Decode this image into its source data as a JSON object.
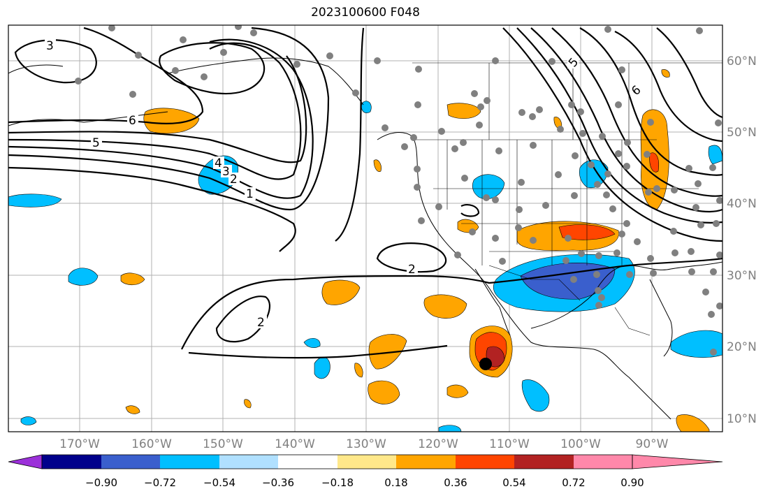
{
  "title": "2023100600 F048",
  "lon_labels": [
    "170°W",
    "160°W",
    "150°W",
    "140°W",
    "130°W",
    "120°W",
    "110°W",
    "100°W",
    "90°W"
  ],
  "lat_labels": [
    "60°N",
    "50°N",
    "40°N",
    "30°N",
    "20°N",
    "10°N"
  ],
  "colorbar": {
    "ticks": [
      "−0.90",
      "−0.72",
      "−0.54",
      "−0.36",
      "−0.18",
      "0.18",
      "0.36",
      "0.54",
      "0.72",
      "0.90"
    ],
    "colors": [
      "#9b30d9",
      "#00008b",
      "#3a5fcd",
      "#00bfff",
      "#b0e0ff",
      "#ffffff",
      "#ffe88a",
      "#ffa500",
      "#ff4500",
      "#b22222",
      "#ff88aa"
    ]
  },
  "contour_labels": [
    "3",
    "6",
    "5",
    "4",
    "3",
    "2",
    "1",
    "2",
    "2",
    "5",
    "6"
  ],
  "colors": {
    "land_stations": "#808080",
    "positive": "#ffa500",
    "negative": "#00bfff",
    "strong_neg": "#3a5fcd",
    "strong_pos": "#ff4500"
  },
  "storm_marker": "black-dot"
}
